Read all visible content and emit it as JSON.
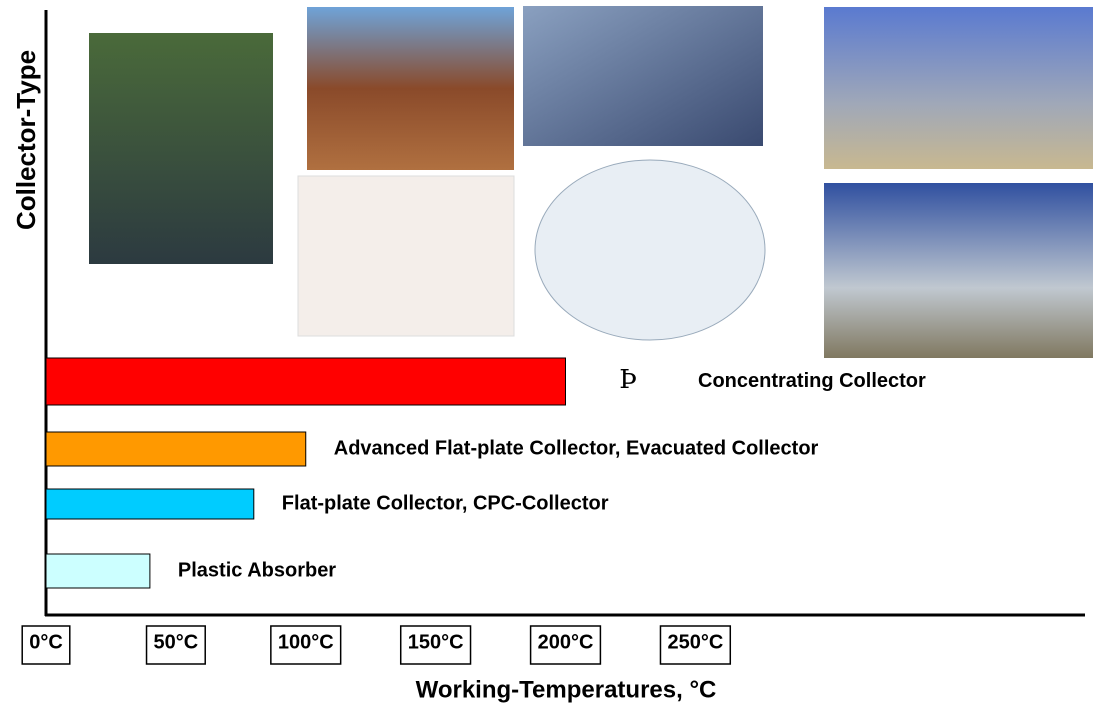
{
  "chart_data": {
    "type": "bar",
    "orientation": "horizontal",
    "y_label": "Collector-Type",
    "x_label": "Working-Temperatures, °C",
    "categories": [
      "Concentrating Collector",
      "Advanced Flat-plate Collector, Evacuated Collector",
      "Flat-plate Collector, CPC-Collector",
      "Plastic Absorber"
    ],
    "values": [
      200,
      100,
      80,
      40
    ],
    "colors": [
      "#ff0000",
      "#ff9900",
      "#00ccff",
      "#ccffff"
    ],
    "annotation": "Þ",
    "xlim": [
      0,
      400
    ],
    "xticks": [
      {
        "value": 0,
        "label": "0°C"
      },
      {
        "value": 50,
        "label": "50°C"
      },
      {
        "value": 100,
        "label": "100°C"
      },
      {
        "value": 150,
        "label": "150°C"
      },
      {
        "value": 200,
        "label": "200°C"
      },
      {
        "value": 250,
        "label": "250°C"
      }
    ]
  }
}
